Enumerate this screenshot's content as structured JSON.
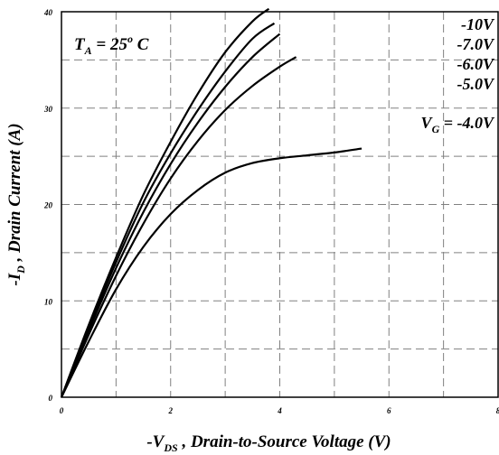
{
  "chart_data": {
    "type": "line",
    "xlabel": {
      "prefix": "-V",
      "sub": "DS",
      "rest": " , Drain-to-Source Voltage (V)"
    },
    "ylabel": {
      "prefix": "-I",
      "sub": "D",
      "rest": " , Drain Current (A)"
    },
    "xlim": [
      0,
      8
    ],
    "ylim": [
      0,
      40
    ],
    "x_ticks": [
      0,
      2,
      4,
      6,
      8
    ],
    "y_ticks": [
      0,
      10,
      20,
      30,
      40
    ],
    "x_gridlines": [
      1,
      2,
      3,
      4,
      5,
      6,
      7
    ],
    "y_gridlines": [
      5,
      10,
      15,
      20,
      25,
      30,
      35
    ],
    "grid": true,
    "annotation_temp": {
      "prefix": "T",
      "sub": "A",
      "rest": " = 25",
      "sup": "o",
      "unit": " C"
    },
    "curve_labels": [
      "-10V",
      "-7.0V",
      "-6.0V",
      "-5.0V"
    ],
    "vg_label": {
      "prefix": "V",
      "sub": "G",
      "rest": " = -4.0V"
    },
    "series": [
      {
        "name": "-10V",
        "x": [
          0,
          0.5,
          1.0,
          1.5,
          2.0,
          2.5,
          3.0,
          3.5,
          3.8
        ],
        "y": [
          0,
          7.5,
          14.5,
          21.0,
          26.5,
          31.5,
          35.8,
          39.0,
          40.3
        ]
      },
      {
        "name": "-7.0V",
        "x": [
          0,
          0.5,
          1.0,
          1.5,
          2.0,
          2.5,
          3.0,
          3.5,
          3.9
        ],
        "y": [
          0,
          7.2,
          14.0,
          20.2,
          25.3,
          29.8,
          33.8,
          37.2,
          38.8
        ]
      },
      {
        "name": "-6.0V",
        "x": [
          0,
          0.5,
          1.0,
          1.5,
          2.0,
          2.5,
          3.0,
          3.5,
          4.0
        ],
        "y": [
          0,
          6.9,
          13.4,
          19.2,
          24.2,
          28.5,
          32.2,
          35.3,
          37.7
        ]
      },
      {
        "name": "-5.0V",
        "x": [
          0,
          0.5,
          1.0,
          1.5,
          2.0,
          2.5,
          3.0,
          3.5,
          4.0,
          4.3
        ],
        "y": [
          0,
          6.5,
          12.6,
          18.0,
          22.7,
          26.6,
          29.8,
          32.3,
          34.3,
          35.3
        ]
      },
      {
        "name": "-4.0V",
        "x": [
          0,
          0.5,
          1.0,
          1.5,
          2.0,
          2.5,
          3.0,
          3.5,
          4.0,
          4.5,
          5.0,
          5.5
        ],
        "y": [
          0,
          5.8,
          11.2,
          15.6,
          19.0,
          21.5,
          23.3,
          24.3,
          24.8,
          25.1,
          25.4,
          25.8
        ]
      }
    ]
  }
}
